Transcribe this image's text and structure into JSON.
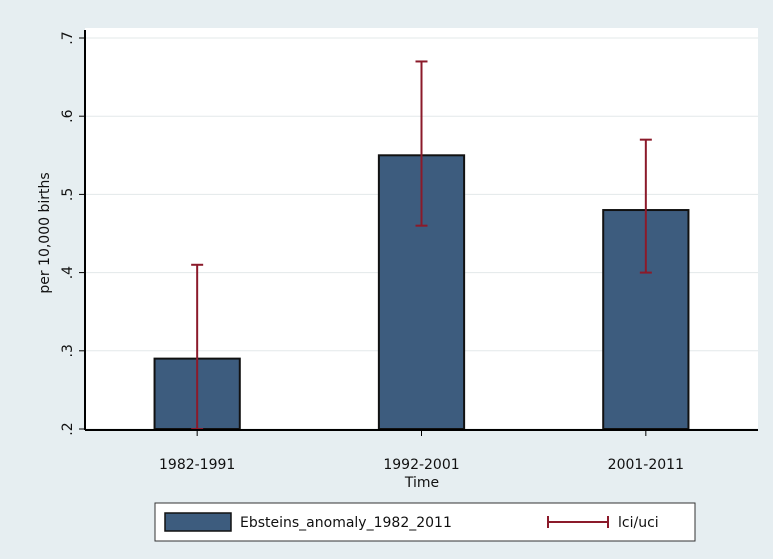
{
  "chart_data": {
    "type": "bar",
    "ylabel": "per 10,000 births",
    "xlabel": "Time",
    "categories": [
      "1982-1991",
      "1992-2001",
      "2001-2011"
    ],
    "series": [
      {
        "name": "Ebsteins_anomaly_1982_2011",
        "color": "#3d5c7e",
        "values": [
          0.29,
          0.55,
          0.48
        ]
      }
    ],
    "error_bars": {
      "name": "lci/uci",
      "color": "#8b1a2a",
      "lower": [
        0.2,
        0.46,
        0.4
      ],
      "upper": [
        0.41,
        0.67,
        0.57
      ]
    },
    "ylim": [
      0.2,
      0.7
    ],
    "yticks": [
      {
        "value": 0.2,
        "label": ".2"
      },
      {
        "value": 0.3,
        "label": ".3"
      },
      {
        "value": 0.4,
        "label": ".4"
      },
      {
        "value": 0.5,
        "label": ".5"
      },
      {
        "value": 0.6,
        "label": ".6"
      },
      {
        "value": 0.7,
        "label": ".7"
      }
    ],
    "grid": true
  }
}
